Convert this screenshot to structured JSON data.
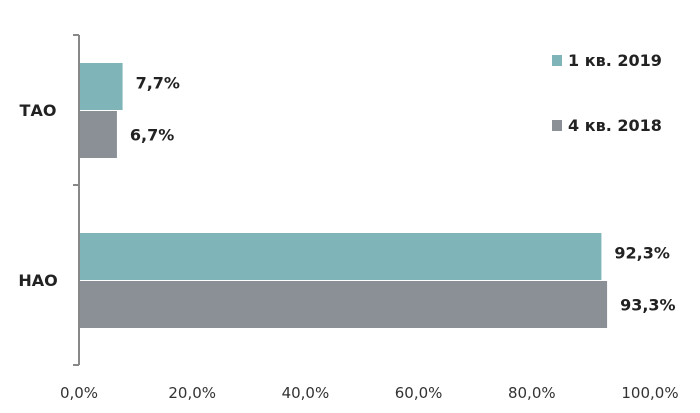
{
  "chart_data": {
    "type": "bar",
    "orientation": "horizontal",
    "categories": [
      "ТАО",
      "НАО"
    ],
    "series": [
      {
        "name": "1 кв. 2019",
        "values": [
          7.7,
          92.3
        ],
        "labels": [
          "7,7%",
          "92,3%"
        ],
        "color": "#7fb5b8"
      },
      {
        "name": "4 кв. 2018",
        "values": [
          6.7,
          93.3
        ],
        "labels": [
          "6,7%",
          "93,3%"
        ],
        "color": "#8a9095"
      }
    ],
    "xlim": [
      0,
      100
    ],
    "xticks": [
      0,
      20,
      40,
      60,
      80,
      100
    ],
    "xtick_labels": [
      "0,0%",
      "20,0%",
      "40,0%",
      "60,0%",
      "80,0%",
      "100,0%"
    ],
    "grid": false,
    "legend_position": "right",
    "title": "",
    "xlabel": "",
    "ylabel": ""
  }
}
